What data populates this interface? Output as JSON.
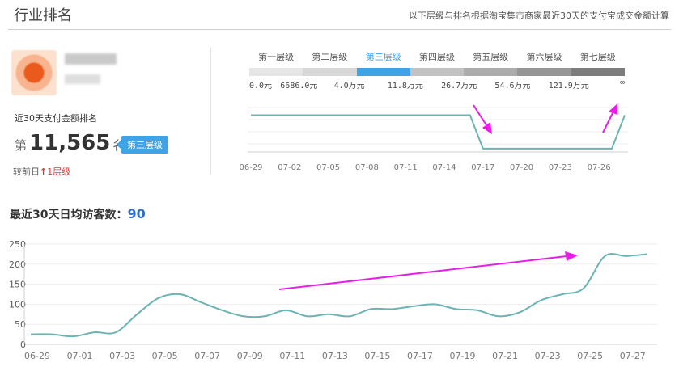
{
  "header": {
    "title": "行业排名",
    "note": "以下层级与排名根据淘宝集市商家最近30天的支付宝成交金额计算"
  },
  "rank": {
    "label": "近30天支付金额排名",
    "prefix": "第",
    "value": "11,565",
    "suffix": "名",
    "tier_badge": "第三层级",
    "compare_prefix": "较前日",
    "compare_arrow": "↑",
    "compare_value": "1层级"
  },
  "tiers": [
    {
      "label": "第一层级",
      "color": "#e6e6e6",
      "active": false
    },
    {
      "label": "第二层级",
      "color": "#d7d7d7",
      "active": false
    },
    {
      "label": "第三层级",
      "color": "#3fa3e8",
      "active": true
    },
    {
      "label": "第四层级",
      "color": "#c2c2c2",
      "active": false
    },
    {
      "label": "第五层级",
      "color": "#acacac",
      "active": false
    },
    {
      "label": "第六层级",
      "color": "#969696",
      "active": false
    },
    {
      "label": "第七层级",
      "color": "#7d7d7d",
      "active": false
    }
  ],
  "thresholds": [
    "0.0元",
    "6686.0元",
    "4.0万元",
    "11.8万元",
    "26.7万元",
    "54.6万元",
    "121.9万元",
    "∞"
  ],
  "visitors": {
    "label": "最近30天日均访客数：",
    "value": "90"
  },
  "colors": {
    "line": "#6cb3b3",
    "arrow": "#e81ee8",
    "accent": "#3fa3e8"
  },
  "chart_data": [
    {
      "type": "line",
      "x": [
        "06-29",
        "06-30",
        "07-01",
        "07-02",
        "07-03",
        "07-04",
        "07-05",
        "07-06",
        "07-07",
        "07-08",
        "07-09",
        "07-10",
        "07-11",
        "07-12",
        "07-13",
        "07-14",
        "07-15",
        "07-16",
        "07-17",
        "07-18",
        "07-19",
        "07-20",
        "07-21",
        "07-22",
        "07-23",
        "07-24",
        "07-25",
        "07-26",
        "07-27",
        "07-28"
      ],
      "xticks": [
        "06-29",
        "07-02",
        "07-05",
        "07-08",
        "07-11",
        "07-14",
        "07-17",
        "07-20",
        "07-23",
        "07-26"
      ],
      "values": [
        3,
        3,
        3,
        3,
        3,
        3,
        3,
        3,
        3,
        3,
        3,
        3,
        3,
        3,
        3,
        3,
        3,
        3,
        4,
        4,
        4,
        4,
        4,
        4,
        4,
        4,
        4,
        4,
        4,
        3
      ],
      "y_inverted": true,
      "grid": true
    },
    {
      "type": "line",
      "x": [
        "06-29",
        "06-30",
        "07-01",
        "07-02",
        "07-03",
        "07-04",
        "07-05",
        "07-06",
        "07-07",
        "07-08",
        "07-09",
        "07-10",
        "07-11",
        "07-12",
        "07-13",
        "07-14",
        "07-15",
        "07-16",
        "07-17",
        "07-18",
        "07-19",
        "07-20",
        "07-21",
        "07-22",
        "07-23",
        "07-24",
        "07-25",
        "07-26",
        "07-27",
        "07-28"
      ],
      "xticks": [
        "06-29",
        "07-01",
        "07-03",
        "07-05",
        "07-07",
        "07-09",
        "07-11",
        "07-13",
        "07-15",
        "07-17",
        "07-19",
        "07-21",
        "07-23",
        "07-25",
        "07-27"
      ],
      "values": [
        25,
        25,
        20,
        30,
        30,
        75,
        115,
        125,
        105,
        85,
        70,
        70,
        85,
        70,
        75,
        70,
        88,
        88,
        95,
        100,
        88,
        85,
        70,
        80,
        110,
        125,
        140,
        220,
        220,
        225
      ],
      "ylim": [
        0,
        250
      ],
      "yticks": [
        0,
        50,
        100,
        150,
        200,
        250
      ],
      "grid": true
    }
  ]
}
